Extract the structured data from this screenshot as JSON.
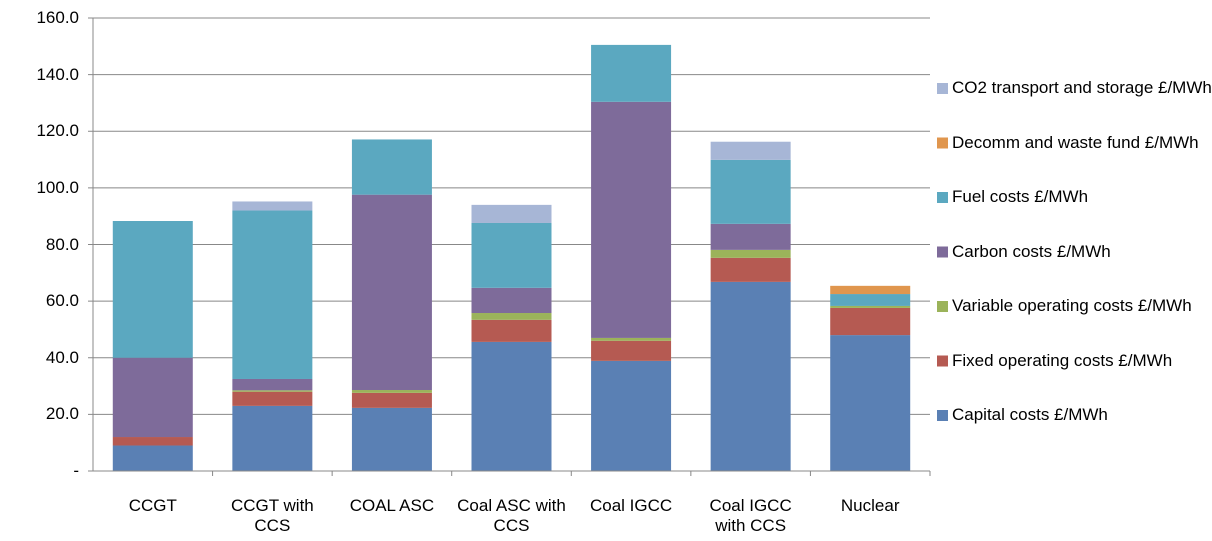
{
  "chart_data": {
    "type": "stacked_bar",
    "categories": [
      "CCGT",
      "CCGT with CCS",
      "COAL ASC",
      "Coal ASC with CCS",
      "Coal IGCC",
      "Coal IGCC with CCS",
      "Nuclear"
    ],
    "series": [
      {
        "name": "Capital costs £/MWh",
        "color": "#5a80b4",
        "values": [
          9,
          23,
          22.3,
          45.6,
          38.9,
          66.8,
          48
        ]
      },
      {
        "name": "Fixed operating costs £/MWh",
        "color": "#b55a52",
        "values": [
          3,
          5,
          5.3,
          7.8,
          7.1,
          8.5,
          9.6
        ]
      },
      {
        "name": "Variable operating costs £/MWh",
        "color": "#9bb35a",
        "values": [
          0,
          0.5,
          1,
          2.4,
          1,
          2.8,
          0.7
        ]
      },
      {
        "name": "Carbon costs £/MWh",
        "color": "#7e6b9a",
        "values": [
          28,
          4,
          69,
          8.9,
          83.4,
          9.2,
          0
        ]
      },
      {
        "name": "Fuel costs £/MWh",
        "color": "#5ba8c0",
        "values": [
          48.3,
          59.5,
          19.5,
          22.9,
          20.1,
          22.6,
          4.2
        ]
      },
      {
        "name": "Decomm and waste fund £/MWh",
        "color": "#e0964e",
        "values": [
          0,
          0,
          0,
          0,
          0,
          0,
          2.9
        ]
      },
      {
        "name": "CO2 transport and storage £/MWh",
        "color": "#a7b6d6",
        "values": [
          0,
          3.2,
          0,
          6.4,
          0,
          6.4,
          0
        ]
      }
    ],
    "ylim": [
      0,
      160
    ],
    "yticks": [
      {
        "value": 0,
        "label": "-"
      },
      {
        "value": 20,
        "label": "20.0"
      },
      {
        "value": 40,
        "label": "40.0"
      },
      {
        "value": 60,
        "label": "60.0"
      },
      {
        "value": 80,
        "label": "80.0"
      },
      {
        "value": 100,
        "label": "100.0"
      },
      {
        "value": 120,
        "label": "120.0"
      },
      {
        "value": 140,
        "label": "140.0"
      },
      {
        "value": 160,
        "label": "160.0"
      }
    ],
    "grid": true,
    "legend": "right"
  }
}
